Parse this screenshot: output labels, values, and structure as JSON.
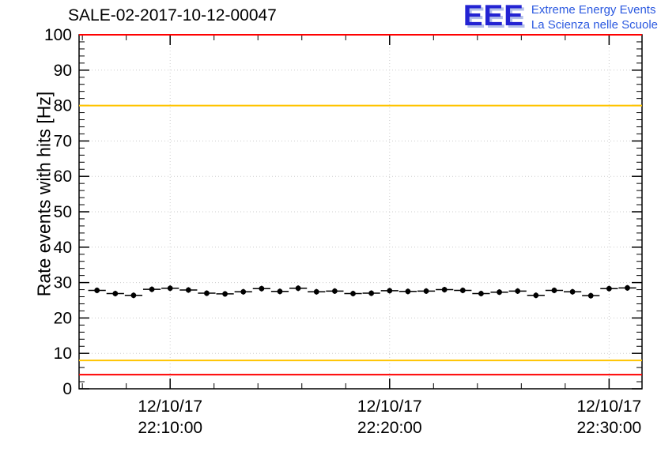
{
  "header": {
    "title": "SALE-02-2017-10-12-00047",
    "logo": {
      "acronym": "EEE",
      "line1": "Extreme Energy Events",
      "line2": "La Scienza nelle Scuole",
      "acronym_color": "#2323d3",
      "text_color": "#2b59e0"
    }
  },
  "chart_data": {
    "type": "scatter",
    "title": "SALE-02-2017-10-12-00047",
    "xlabel": "",
    "ylabel": "Rate events with hits [Hz]",
    "ylim": [
      0,
      100
    ],
    "yticks": [
      0,
      10,
      20,
      30,
      40,
      50,
      60,
      70,
      80,
      90,
      100
    ],
    "y_minor_step": 2,
    "x_domain_seconds": [
      351,
      1890
    ],
    "x_minor_step_seconds": 120,
    "grid": true,
    "legend": false,
    "xticks": [
      {
        "seconds": 600,
        "label_date": "12/10/17",
        "label_time": "22:10:00"
      },
      {
        "seconds": 1200,
        "label_date": "12/10/17",
        "label_time": "22:20:00"
      },
      {
        "seconds": 1800,
        "label_date": "12/10/17",
        "label_time": "22:30:00"
      }
    ],
    "reference_lines": [
      {
        "y": 100,
        "color": "#ff0000"
      },
      {
        "y": 80,
        "color": "#ffc400"
      },
      {
        "y": 8,
        "color": "#ffc400"
      },
      {
        "y": 4,
        "color": "#ff0000"
      }
    ],
    "series": [
      {
        "name": "rate-events-with-hits",
        "color": "#000000",
        "marker": "dot",
        "yerr": 0.8,
        "xerr_seconds": 24,
        "x_seconds": [
          400,
          450,
          500,
          550,
          600,
          650,
          700,
          750,
          800,
          850,
          900,
          950,
          1000,
          1050,
          1100,
          1150,
          1200,
          1250,
          1300,
          1350,
          1400,
          1450,
          1500,
          1550,
          1600,
          1650,
          1700,
          1750,
          1800,
          1850
        ],
        "y": [
          27.8,
          26.9,
          26.4,
          28.1,
          28.4,
          27.9,
          27.0,
          26.8,
          27.4,
          28.3,
          27.5,
          28.4,
          27.4,
          27.6,
          26.9,
          27.0,
          27.7,
          27.5,
          27.6,
          28.0,
          27.8,
          26.9,
          27.3,
          27.6,
          26.4,
          27.8,
          27.4,
          26.3,
          28.3,
          28.5
        ]
      }
    ]
  }
}
